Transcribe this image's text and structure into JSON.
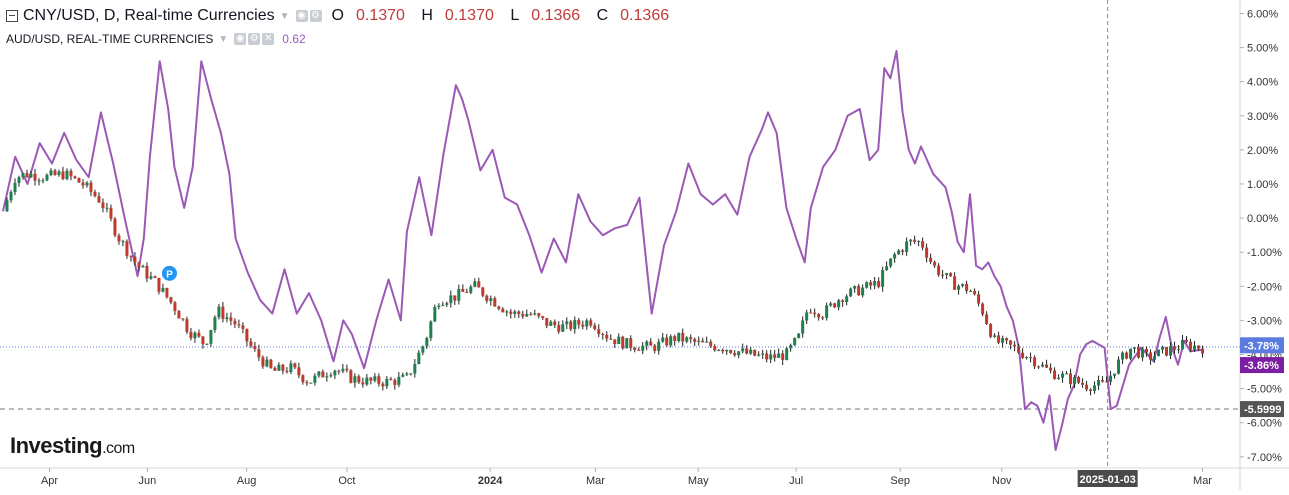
{
  "header": {
    "symbol_title": "CNY/USD, D, Real-time Currencies",
    "ohlc": [
      {
        "key": "O",
        "value": "0.1370"
      },
      {
        "key": "H",
        "value": "0.1370"
      },
      {
        "key": "L",
        "value": "0.1366"
      },
      {
        "key": "C",
        "value": "0.1366"
      }
    ],
    "overlay_title": "AUD/USD, REAL-TIME CURRENCIES",
    "overlay_value": "0.62"
  },
  "logo": {
    "brand": "Investing",
    "suffix": ".com"
  },
  "colors": {
    "up": "#1e7f4f",
    "down": "#c0392b",
    "overlay": "#9b59b6",
    "label_cny": "#5b7be0",
    "label_aud": "#7b1fa2",
    "label_level": "#555555",
    "grid": "#e8e8e8",
    "hline_current": "#5b7be0",
    "hline_level": "#777777"
  },
  "chart_data": {
    "type": "line",
    "title": "CNY/USD, D, Real-time Currencies",
    "ylabel": "",
    "xlabel": "",
    "y_unit": "%",
    "ylim": [
      -7.2,
      6.2
    ],
    "y_ticks": [
      "6.00%",
      "5.00%",
      "4.00%",
      "3.00%",
      "2.00%",
      "1.00%",
      "0.00%",
      "-1.00%",
      "-2.00%",
      "-3.00%",
      "-4.00%",
      "-5.00%",
      "-6.00%",
      "-7.00%"
    ],
    "y_tick_values": [
      6,
      5,
      4,
      3,
      2,
      1,
      0,
      -1,
      -2,
      -3,
      -4,
      -5,
      -6,
      -7
    ],
    "x_ticks": [
      {
        "label": "Apr",
        "t": 0.038,
        "bold": false
      },
      {
        "label": "Jun",
        "t": 0.118,
        "bold": false
      },
      {
        "label": "Aug",
        "t": 0.199,
        "bold": false
      },
      {
        "label": "Oct",
        "t": 0.281,
        "bold": false
      },
      {
        "label": "2024",
        "t": 0.398,
        "bold": true
      },
      {
        "label": "Mar",
        "t": 0.484,
        "bold": false
      },
      {
        "label": "May",
        "t": 0.568,
        "bold": false
      },
      {
        "label": "Jul",
        "t": 0.648,
        "bold": false
      },
      {
        "label": "Sep",
        "t": 0.733,
        "bold": false
      },
      {
        "label": "Nov",
        "t": 0.816,
        "bold": false
      },
      {
        "label": "Mar",
        "t": 0.98,
        "bold": false
      }
    ],
    "cursor": {
      "label": "2025-01-03",
      "t": 0.9025
    },
    "price_labels": [
      {
        "text": "-3.78%",
        "value": -3.78,
        "role": "cny"
      },
      {
        "text": "-3.86%",
        "value": -3.86,
        "role": "aud"
      },
      {
        "text": "-5.5999",
        "value": -5.6,
        "role": "level"
      }
    ],
    "markers": [
      {
        "text": "P",
        "t": 0.136,
        "value": -1.62
      }
    ],
    "series": [
      {
        "name": "CNY/USD",
        "kind": "candlestick",
        "points": [
          [
            0.0,
            0.2
          ],
          [
            0.01,
            1.2
          ],
          [
            0.02,
            1.3
          ],
          [
            0.035,
            1.2
          ],
          [
            0.05,
            1.3
          ],
          [
            0.065,
            1.0
          ],
          [
            0.08,
            0.5
          ],
          [
            0.095,
            -0.6
          ],
          [
            0.11,
            -1.4
          ],
          [
            0.125,
            -1.9
          ],
          [
            0.14,
            -2.6
          ],
          [
            0.152,
            -3.3
          ],
          [
            0.165,
            -3.7
          ],
          [
            0.175,
            -2.7
          ],
          [
            0.19,
            -3.1
          ],
          [
            0.205,
            -3.9
          ],
          [
            0.22,
            -4.5
          ],
          [
            0.235,
            -4.4
          ],
          [
            0.25,
            -4.8
          ],
          [
            0.26,
            -4.6
          ],
          [
            0.27,
            -4.4
          ],
          [
            0.285,
            -4.7
          ],
          [
            0.3,
            -4.8
          ],
          [
            0.315,
            -4.8
          ],
          [
            0.33,
            -4.7
          ],
          [
            0.345,
            -3.6
          ],
          [
            0.355,
            -2.4
          ],
          [
            0.37,
            -2.3
          ],
          [
            0.385,
            -2.0
          ],
          [
            0.4,
            -2.4
          ],
          [
            0.415,
            -2.8
          ],
          [
            0.43,
            -2.8
          ],
          [
            0.445,
            -3.1
          ],
          [
            0.46,
            -3.2
          ],
          [
            0.48,
            -3.0
          ],
          [
            0.495,
            -3.5
          ],
          [
            0.51,
            -3.7
          ],
          [
            0.53,
            -3.8
          ],
          [
            0.55,
            -3.5
          ],
          [
            0.57,
            -3.7
          ],
          [
            0.59,
            -3.8
          ],
          [
            0.61,
            -4.0
          ],
          [
            0.625,
            -4.1
          ],
          [
            0.64,
            -4.0
          ],
          [
            0.65,
            -3.5
          ],
          [
            0.658,
            -2.6
          ],
          [
            0.67,
            -2.8
          ],
          [
            0.685,
            -2.3
          ],
          [
            0.7,
            -2.1
          ],
          [
            0.715,
            -1.9
          ],
          [
            0.728,
            -1.1
          ],
          [
            0.74,
            -0.7
          ],
          [
            0.75,
            -0.7
          ],
          [
            0.76,
            -1.4
          ],
          [
            0.775,
            -1.9
          ],
          [
            0.79,
            -2.1
          ],
          [
            0.8,
            -2.7
          ],
          [
            0.81,
            -3.6
          ],
          [
            0.825,
            -3.8
          ],
          [
            0.84,
            -4.1
          ],
          [
            0.855,
            -4.5
          ],
          [
            0.87,
            -4.7
          ],
          [
            0.885,
            -4.9
          ],
          [
            0.9,
            -4.9
          ],
          [
            0.91,
            -4.3
          ],
          [
            0.922,
            -3.8
          ],
          [
            0.935,
            -4.1
          ],
          [
            0.95,
            -3.9
          ],
          [
            0.965,
            -3.7
          ],
          [
            0.98,
            -3.8
          ]
        ]
      },
      {
        "name": "AUD/USD",
        "kind": "line",
        "points": [
          [
            0.0,
            0.2
          ],
          [
            0.01,
            1.8
          ],
          [
            0.02,
            1.0
          ],
          [
            0.03,
            2.2
          ],
          [
            0.04,
            1.6
          ],
          [
            0.05,
            2.5
          ],
          [
            0.06,
            1.7
          ],
          [
            0.07,
            1.2
          ],
          [
            0.08,
            3.1
          ],
          [
            0.09,
            1.6
          ],
          [
            0.1,
            -0.1
          ],
          [
            0.11,
            -1.7
          ],
          [
            0.115,
            -0.6
          ],
          [
            0.12,
            1.8
          ],
          [
            0.128,
            4.6
          ],
          [
            0.135,
            3.2
          ],
          [
            0.14,
            1.5
          ],
          [
            0.148,
            0.3
          ],
          [
            0.155,
            1.5
          ],
          [
            0.162,
            4.6
          ],
          [
            0.17,
            3.5
          ],
          [
            0.178,
            2.5
          ],
          [
            0.185,
            1.3
          ],
          [
            0.19,
            -0.6
          ],
          [
            0.2,
            -1.6
          ],
          [
            0.21,
            -2.4
          ],
          [
            0.22,
            -2.8
          ],
          [
            0.23,
            -1.5
          ],
          [
            0.24,
            -2.8
          ],
          [
            0.25,
            -2.2
          ],
          [
            0.26,
            -3.0
          ],
          [
            0.27,
            -4.2
          ],
          [
            0.278,
            -3.0
          ],
          [
            0.285,
            -3.4
          ],
          [
            0.295,
            -4.4
          ],
          [
            0.305,
            -3.0
          ],
          [
            0.315,
            -1.8
          ],
          [
            0.325,
            -3.0
          ],
          [
            0.33,
            -0.4
          ],
          [
            0.34,
            1.2
          ],
          [
            0.35,
            -0.5
          ],
          [
            0.36,
            1.9
          ],
          [
            0.37,
            3.9
          ],
          [
            0.375,
            3.5
          ],
          [
            0.38,
            2.9
          ],
          [
            0.39,
            1.4
          ],
          [
            0.4,
            2.0
          ],
          [
            0.41,
            0.6
          ],
          [
            0.42,
            0.4
          ],
          [
            0.43,
            -0.5
          ],
          [
            0.44,
            -1.6
          ],
          [
            0.45,
            -0.6
          ],
          [
            0.46,
            -1.3
          ],
          [
            0.47,
            0.7
          ],
          [
            0.48,
            -0.1
          ],
          [
            0.49,
            -0.5
          ],
          [
            0.5,
            -0.3
          ],
          [
            0.51,
            -0.2
          ],
          [
            0.52,
            0.6
          ],
          [
            0.53,
            -2.8
          ],
          [
            0.54,
            -0.8
          ],
          [
            0.55,
            0.2
          ],
          [
            0.56,
            1.6
          ],
          [
            0.57,
            0.7
          ],
          [
            0.58,
            0.4
          ],
          [
            0.59,
            0.7
          ],
          [
            0.6,
            0.1
          ],
          [
            0.61,
            1.8
          ],
          [
            0.62,
            2.6
          ],
          [
            0.625,
            3.1
          ],
          [
            0.632,
            2.5
          ],
          [
            0.64,
            0.3
          ],
          [
            0.648,
            -0.6
          ],
          [
            0.655,
            -1.3
          ],
          [
            0.66,
            0.3
          ],
          [
            0.67,
            1.5
          ],
          [
            0.68,
            2.0
          ],
          [
            0.69,
            3.0
          ],
          [
            0.7,
            3.2
          ],
          [
            0.708,
            1.7
          ],
          [
            0.715,
            2.0
          ],
          [
            0.72,
            4.4
          ],
          [
            0.725,
            4.1
          ],
          [
            0.73,
            4.9
          ],
          [
            0.735,
            3.1
          ],
          [
            0.74,
            2.0
          ],
          [
            0.745,
            1.6
          ],
          [
            0.75,
            2.1
          ],
          [
            0.755,
            1.7
          ],
          [
            0.76,
            1.3
          ],
          [
            0.77,
            0.9
          ],
          [
            0.775,
            0.2
          ],
          [
            0.78,
            -0.7
          ],
          [
            0.785,
            -1.0
          ],
          [
            0.79,
            0.7
          ],
          [
            0.795,
            -1.4
          ],
          [
            0.8,
            -1.5
          ],
          [
            0.805,
            -1.3
          ],
          [
            0.81,
            -1.7
          ],
          [
            0.815,
            -2.0
          ],
          [
            0.82,
            -2.6
          ],
          [
            0.825,
            -3.0
          ],
          [
            0.83,
            -3.8
          ],
          [
            0.835,
            -5.6
          ],
          [
            0.84,
            -5.4
          ],
          [
            0.845,
            -5.5
          ],
          [
            0.85,
            -6.0
          ],
          [
            0.855,
            -5.2
          ],
          [
            0.86,
            -6.8
          ],
          [
            0.865,
            -6.1
          ],
          [
            0.87,
            -5.3
          ],
          [
            0.875,
            -4.9
          ],
          [
            0.88,
            -4.0
          ],
          [
            0.885,
            -3.7
          ],
          [
            0.89,
            -3.6
          ],
          [
            0.9,
            -3.8
          ],
          [
            0.905,
            -5.6
          ],
          [
            0.91,
            -5.5
          ],
          [
            0.92,
            -4.3
          ],
          [
            0.93,
            -3.8
          ],
          [
            0.94,
            -4.2
          ],
          [
            0.945,
            -3.5
          ],
          [
            0.95,
            -2.9
          ],
          [
            0.955,
            -3.8
          ],
          [
            0.96,
            -4.3
          ],
          [
            0.965,
            -3.6
          ],
          [
            0.97,
            -3.9
          ],
          [
            0.98,
            -3.86
          ]
        ]
      }
    ]
  }
}
